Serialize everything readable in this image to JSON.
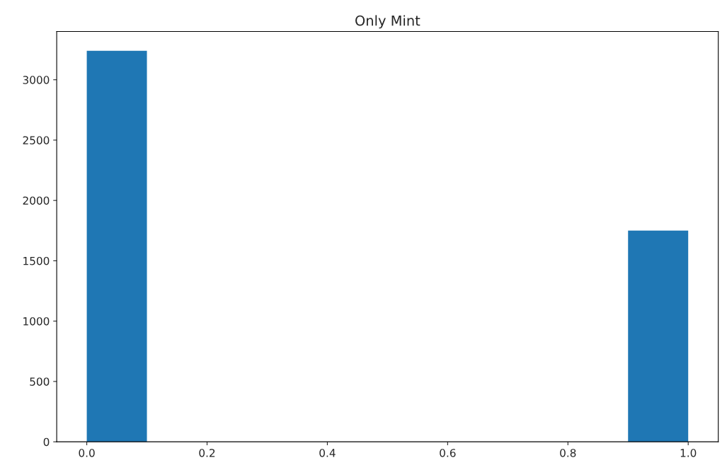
{
  "chart_data": {
    "type": "histogram",
    "title": "Only Mint",
    "bins": [
      0.0,
      0.1,
      0.2,
      0.3,
      0.4,
      0.5,
      0.6,
      0.7,
      0.8,
      0.9,
      1.0
    ],
    "values": [
      3240,
      0,
      0,
      0,
      0,
      0,
      0,
      0,
      0,
      1750
    ],
    "color": "#1f77b4",
    "xlim": [
      -0.05,
      1.05
    ],
    "xticks": [
      {
        "value": 0,
        "label": "0.0"
      },
      0.2,
      0.4,
      0.6,
      0.8,
      {
        "value": 1,
        "label": "1.0"
      }
    ],
    "ylim": [
      0,
      3400
    ],
    "yticks": [
      0,
      500,
      1000,
      1500,
      2000,
      2500,
      3000
    ],
    "grid": false
  }
}
